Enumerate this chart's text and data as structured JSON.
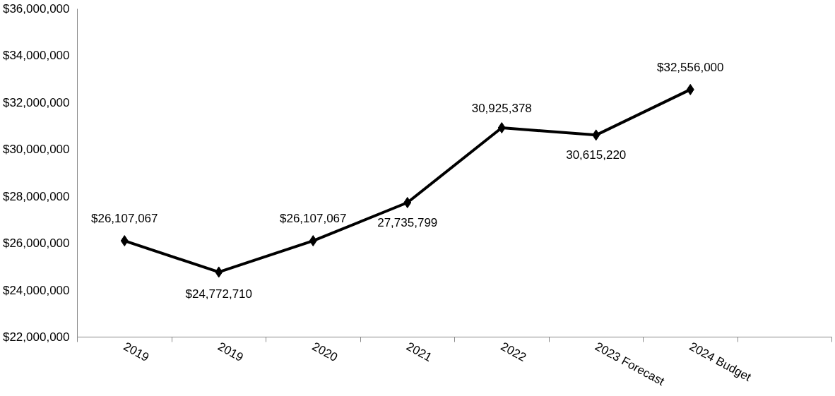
{
  "chart_data": {
    "type": "line",
    "categories": [
      "2019",
      "2019",
      "2020",
      "2021",
      "2022",
      "2023 Forecast",
      "2024 Budget",
      null
    ],
    "series": [
      {
        "color": "#000000",
        "values": [
          26107067,
          24772710,
          26107067,
          27735799,
          30925378,
          30615220,
          32556000,
          null
        ]
      }
    ],
    "value_labels": [
      "$26,107,067",
      "$24,772,710",
      "$26,107,067",
      "27,735,799",
      "30,925,378",
      "30,615,220",
      "$32,556,000",
      null
    ],
    "ylim": [
      22000000,
      36000000
    ],
    "yticks": [
      {
        "value": 22000000,
        "label": "$22,000,000"
      },
      {
        "value": 24000000,
        "label": "$24,000,000"
      },
      {
        "value": 26000000,
        "label": "$26,000,000"
      },
      {
        "value": 28000000,
        "label": "$28,000,000"
      },
      {
        "value": 30000000,
        "label": "$30,000,000"
      },
      {
        "value": 32000000,
        "label": "$32,000,000"
      },
      {
        "value": 34000000,
        "label": "$34,000,000"
      },
      {
        "value": 36000000,
        "label": "$36,000,000"
      }
    ],
    "marker": "diamond",
    "line_style": "solid",
    "grid": false
  }
}
